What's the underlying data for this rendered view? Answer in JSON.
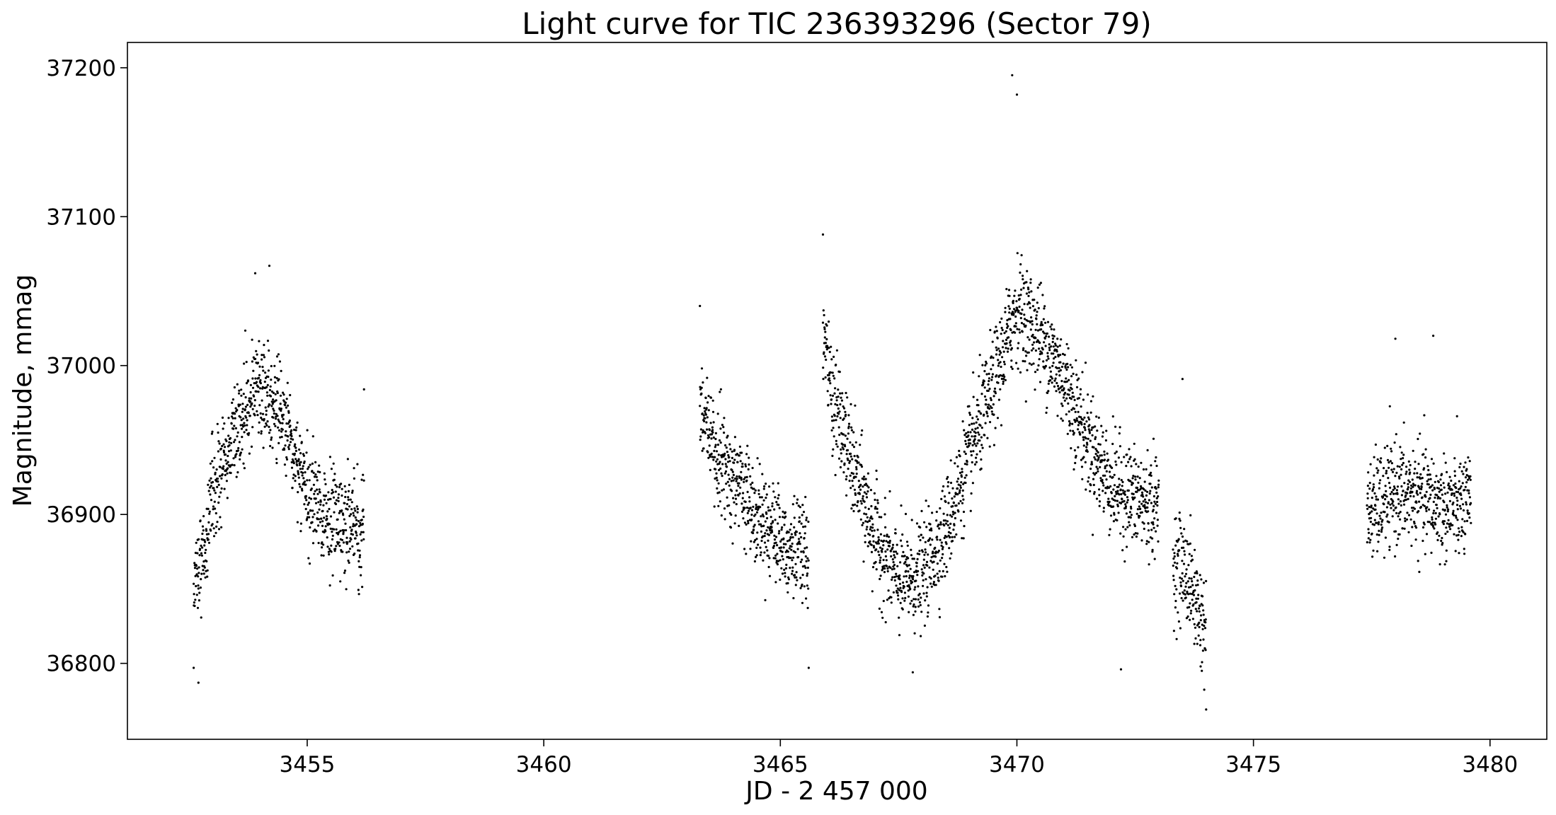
{
  "chart_data": {
    "type": "scatter",
    "title": "Light curve for TIC 236393296 (Sector 79)",
    "xlabel": "JD - 2 457 000",
    "ylabel": "Magnitude, mmag",
    "xlim": [
      3451.2,
      3481.2
    ],
    "ylim": [
      36749,
      37217
    ],
    "xticks": [
      3455,
      3460,
      3465,
      3470,
      3475,
      3480
    ],
    "yticks": [
      36800,
      36900,
      37000,
      37100,
      37200
    ],
    "xtick_labels": [
      "3455",
      "3460",
      "3465",
      "3470",
      "3475",
      "3480"
    ],
    "ytick_labels": [
      "36800",
      "36900",
      "37000",
      "37100",
      "37200"
    ],
    "grid": false,
    "legend": false,
    "marker_color": "#000000",
    "series": [
      {
        "segments": [
          {
            "x": [
              3452.6,
              3453.0,
              3453.5,
              3454.0,
              3454.5,
              3455.0,
              3455.5,
              3456.2
            ],
            "y": [
              36850,
              36910,
              36960,
              36985,
              36965,
              36915,
              36895,
              36890
            ]
          },
          {
            "x": [
              3463.3,
              3463.6,
              3464.0,
              3464.5,
              3465.0,
              3465.6
            ],
            "y": [
              36975,
              36945,
              36925,
              36905,
              36885,
              36870
            ]
          },
          {
            "x": [
              3465.9,
              3466.1,
              3466.5,
              3467.0,
              3467.5,
              3468.0,
              3468.5,
              3469.0,
              3469.5,
              3470.0,
              3470.5,
              3471.0,
              3471.5,
              3472.0,
              3472.5,
              3473.0
            ],
            "y": [
              37020,
              36980,
              36935,
              36885,
              36855,
              36860,
              36890,
              36940,
              36985,
              37040,
              37020,
              36990,
              36950,
              36920,
              36910,
              36905
            ]
          },
          {
            "x": [
              3473.3,
              3473.6,
              3474.0
            ],
            "y": [
              36870,
              36860,
              36820
            ]
          },
          {
            "x": [
              3477.4,
              3478.0,
              3478.5,
              3479.0,
              3479.6
            ],
            "y": [
              36900,
              36915,
              36912,
              36905,
              36905
            ]
          }
        ],
        "outliers": [
          {
            "x": 3452.7,
            "y": 36787
          },
          {
            "x": 3452.6,
            "y": 36797
          },
          {
            "x": 3453.9,
            "y": 37062
          },
          {
            "x": 3454.2,
            "y": 37067
          },
          {
            "x": 3456.2,
            "y": 36984
          },
          {
            "x": 3463.3,
            "y": 37040
          },
          {
            "x": 3465.9,
            "y": 37088
          },
          {
            "x": 3465.6,
            "y": 36797
          },
          {
            "x": 3467.8,
            "y": 36794
          },
          {
            "x": 3469.9,
            "y": 37195
          },
          {
            "x": 3470.0,
            "y": 37182
          },
          {
            "x": 3472.2,
            "y": 36796
          },
          {
            "x": 3473.5,
            "y": 36991
          },
          {
            "x": 3474.0,
            "y": 36769
          },
          {
            "x": 3478.0,
            "y": 37018
          },
          {
            "x": 3478.8,
            "y": 37020
          }
        ]
      }
    ]
  }
}
